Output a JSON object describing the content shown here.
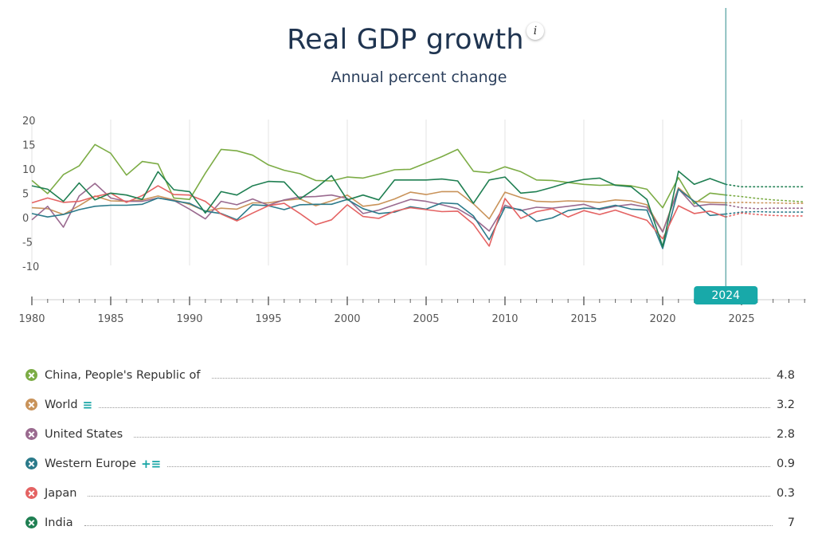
{
  "header": {
    "title": "Real GDP growth",
    "subtitle": "Annual percent change",
    "info_label": "i"
  },
  "selected_year": "2024",
  "chart_data": {
    "type": "line",
    "title": "Real GDP growth",
    "subtitle": "Annual percent change",
    "x_ticks": [
      "1980",
      "1985",
      "1990",
      "1995",
      "2000",
      "2005",
      "2010",
      "2015",
      "2020",
      "2025"
    ],
    "y_ticks": [
      "20",
      "15",
      "10",
      "5",
      "0",
      "-5",
      "-10"
    ],
    "xlim": [
      1980,
      2029
    ],
    "ylim": [
      -10,
      20
    ],
    "grid": "vertical",
    "projection_years": [
      2025,
      2029
    ],
    "series": [
      {
        "name": "China, People's Republic of",
        "color": "#7cac45",
        "latest": "4.8",
        "x_start": 1980,
        "values": [
          7.8,
          5.1,
          9.0,
          10.8,
          15.2,
          13.4,
          8.9,
          11.7,
          11.2,
          4.2,
          3.9,
          9.3,
          14.2,
          13.9,
          13.0,
          11.0,
          9.9,
          9.2,
          7.8,
          7.7,
          8.5,
          8.3,
          9.1,
          10.0,
          10.1,
          11.4,
          12.7,
          14.2,
          9.7,
          9.4,
          10.6,
          9.6,
          7.9,
          7.8,
          7.4,
          7.0,
          6.8,
          6.9,
          6.7,
          6.0,
          2.2,
          8.4,
          3.0,
          5.2,
          4.8
        ],
        "projection": [
          4.5,
          4.1,
          3.8,
          3.6,
          3.4
        ]
      },
      {
        "name": "World",
        "color": "#c9935a",
        "latest": "3.2",
        "x_start": 1980,
        "values": [
          2.2,
          2.0,
          0.8,
          2.6,
          4.6,
          3.6,
          3.5,
          3.8,
          4.6,
          3.8,
          2.9,
          1.5,
          2.1,
          1.9,
          3.2,
          3.2,
          3.7,
          4.0,
          2.6,
          3.6,
          4.8,
          2.5,
          2.9,
          4.0,
          5.4,
          4.9,
          5.5,
          5.5,
          3.0,
          -0.1,
          5.4,
          4.3,
          3.5,
          3.4,
          3.6,
          3.5,
          3.3,
          3.8,
          3.6,
          2.8,
          -2.7,
          6.3,
          3.5,
          3.3,
          3.2
        ],
        "projection": [
          3.3,
          3.2,
          3.2,
          3.1,
          3.1
        ]
      },
      {
        "name": "United States",
        "color": "#9a6a8f",
        "latest": "2.8",
        "x_start": 1980,
        "values": [
          -0.3,
          2.5,
          -1.8,
          4.6,
          7.2,
          4.2,
          3.5,
          3.5,
          4.2,
          3.7,
          1.9,
          -0.1,
          3.5,
          2.8,
          4.0,
          2.7,
          3.8,
          4.4,
          4.5,
          4.8,
          4.1,
          1.0,
          1.7,
          2.8,
          3.9,
          3.5,
          2.8,
          2.0,
          0.1,
          -2.6,
          2.7,
          1.6,
          2.3,
          2.1,
          2.5,
          2.9,
          1.8,
          2.5,
          2.9,
          2.3,
          -2.8,
          6.1,
          2.5,
          2.9,
          2.8
        ],
        "projection": [
          2.2,
          2.0,
          2.1,
          2.1,
          2.1
        ]
      },
      {
        "name": "Western Europe",
        "color": "#2b7a8a",
        "latest": "0.9",
        "x_start": 1980,
        "values": [
          1.0,
          0.3,
          0.8,
          1.8,
          2.5,
          2.7,
          2.7,
          2.9,
          4.2,
          3.6,
          3.1,
          1.5,
          1.0,
          -0.3,
          2.8,
          2.6,
          1.8,
          2.8,
          2.9,
          2.9,
          3.9,
          2.0,
          1.0,
          1.3,
          2.4,
          1.9,
          3.2,
          3.0,
          0.5,
          -4.4,
          2.3,
          1.8,
          -0.6,
          0.1,
          1.6,
          2.1,
          2.0,
          2.7,
          1.9,
          1.7,
          -6.2,
          6.0,
          3.5,
          0.6,
          0.9
        ],
        "projection": [
          1.3,
          1.4,
          1.3,
          1.3,
          1.3
        ]
      },
      {
        "name": "Japan",
        "color": "#e46363",
        "latest": "0.3",
        "x_start": 1980,
        "values": [
          3.2,
          4.2,
          3.3,
          3.5,
          4.5,
          5.2,
          3.3,
          4.7,
          6.7,
          4.9,
          4.8,
          3.5,
          0.9,
          -0.5,
          1.1,
          2.6,
          3.1,
          1.0,
          -1.3,
          -0.3,
          2.8,
          0.4,
          0.0,
          1.5,
          2.2,
          1.8,
          1.4,
          1.5,
          -1.2,
          -5.7,
          4.1,
          0.0,
          1.4,
          2.0,
          0.3,
          1.6,
          0.8,
          1.7,
          0.6,
          -0.4,
          -4.2,
          2.6,
          1.0,
          1.5,
          0.3
        ],
        "projection": [
          1.1,
          0.8,
          0.6,
          0.5,
          0.5
        ]
      },
      {
        "name": "India",
        "color": "#1f7f52",
        "latest": "7",
        "x_start": 1980,
        "values": [
          6.7,
          6.0,
          3.5,
          7.3,
          3.8,
          5.2,
          4.8,
          3.9,
          9.6,
          5.9,
          5.5,
          1.1,
          5.5,
          4.8,
          6.7,
          7.6,
          7.5,
          4.0,
          6.2,
          8.8,
          3.8,
          4.8,
          3.8,
          7.9,
          7.9,
          7.9,
          8.1,
          7.7,
          3.1,
          7.9,
          8.5,
          5.2,
          5.5,
          6.4,
          7.4,
          8.0,
          8.3,
          6.8,
          6.5,
          3.9,
          -5.8,
          9.7,
          7.0,
          8.2,
          7.0
        ],
        "projection": [
          6.5,
          6.5,
          6.5,
          6.5,
          6.5
        ]
      }
    ]
  },
  "legend": [
    {
      "name": "China, People's Republic of",
      "value": "4.8",
      "tools": ""
    },
    {
      "name": "World",
      "value": "3.2",
      "tools": "≡"
    },
    {
      "name": "United States",
      "value": "2.8",
      "tools": ""
    },
    {
      "name": "Western Europe",
      "value": "0.9",
      "tools": "+≡"
    },
    {
      "name": "Japan",
      "value": "0.3",
      "tools": ""
    },
    {
      "name": "India",
      "value": "7",
      "tools": ""
    }
  ]
}
